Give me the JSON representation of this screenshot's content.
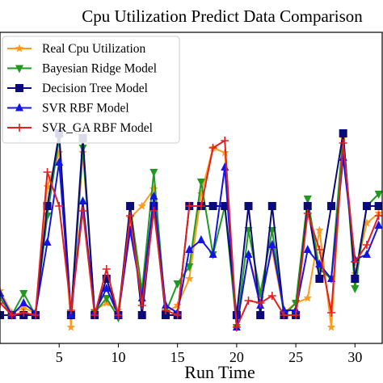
{
  "chart_data": {
    "type": "line",
    "title": "Cpu Utilization Predict Data Comparison",
    "xlabel": "Run Time",
    "ylabel": "",
    "xlim": [
      0,
      32.3
    ],
    "ylim": [
      0.0,
      1.0
    ],
    "xticks": [
      5,
      10,
      15,
      20,
      25,
      30
    ],
    "legend_position": "top-left",
    "x": [
      0,
      1,
      2,
      3,
      4,
      5,
      6,
      7,
      8,
      9,
      10,
      11,
      12,
      13,
      14,
      15,
      16,
      17,
      18,
      19,
      20,
      21,
      22,
      23,
      24,
      25,
      26,
      27,
      28,
      29,
      30,
      31,
      32
    ],
    "series": [
      {
        "name": "Real Cpu Utilization",
        "color": "#ff9a1f",
        "marker": "star",
        "values": [
          0.15,
          0.06,
          0.08,
          0.06,
          0.58,
          0.72,
          0.0,
          0.72,
          0.07,
          0.1,
          0.07,
          0.45,
          0.5,
          0.57,
          0.06,
          0.09,
          0.2,
          0.55,
          0.74,
          0.72,
          0.0,
          0.3,
          0.12,
          0.32,
          0.06,
          0.1,
          0.12,
          0.4,
          0.0,
          0.78,
          0.22,
          0.43,
          0.47
        ]
      },
      {
        "name": "Bayesian Ridge Model",
        "color": "#1f9a1f",
        "marker": "triangle-down",
        "values": [
          0.12,
          0.05,
          0.14,
          0.05,
          0.46,
          0.78,
          0.05,
          0.74,
          0.06,
          0.12,
          0.04,
          0.5,
          0.15,
          0.64,
          0.06,
          0.18,
          0.25,
          0.6,
          0.3,
          0.5,
          0.0,
          0.4,
          0.14,
          0.4,
          0.05,
          0.1,
          0.53,
          0.24,
          0.2,
          0.8,
          0.16,
          0.5,
          0.55
        ]
      },
      {
        "name": "Decision Tree Model",
        "color": "#0a0a78",
        "marker": "square",
        "values": [
          0.05,
          0.05,
          0.05,
          0.05,
          0.5,
          0.8,
          0.05,
          0.78,
          0.05,
          0.2,
          0.05,
          0.5,
          0.05,
          0.5,
          0.05,
          0.05,
          0.5,
          0.5,
          0.5,
          0.5,
          0.05,
          0.5,
          0.05,
          0.5,
          0.05,
          0.05,
          0.5,
          0.2,
          0.5,
          0.8,
          0.2,
          0.5,
          0.5
        ]
      },
      {
        "name": "SVR RBF Model",
        "color": "#1414e6",
        "marker": "triangle-up",
        "values": [
          0.14,
          0.05,
          0.1,
          0.06,
          0.35,
          0.68,
          0.05,
          0.52,
          0.06,
          0.16,
          0.05,
          0.4,
          0.12,
          0.54,
          0.09,
          0.06,
          0.32,
          0.36,
          0.3,
          0.66,
          0.0,
          0.3,
          0.09,
          0.34,
          0.07,
          0.07,
          0.32,
          0.26,
          0.2,
          0.7,
          0.28,
          0.3,
          0.42
        ]
      },
      {
        "name": "SVR_GA RBF Model",
        "color": "#e61e1e",
        "marker": "plus",
        "values": [
          0.1,
          0.05,
          0.06,
          0.05,
          0.64,
          0.5,
          0.07,
          0.48,
          0.05,
          0.24,
          0.05,
          0.46,
          0.09,
          0.48,
          0.07,
          0.05,
          0.5,
          0.5,
          0.74,
          0.77,
          0.0,
          0.11,
          0.1,
          0.13,
          0.05,
          0.05,
          0.47,
          0.32,
          0.06,
          0.76,
          0.27,
          0.34,
          0.46
        ]
      }
    ]
  }
}
